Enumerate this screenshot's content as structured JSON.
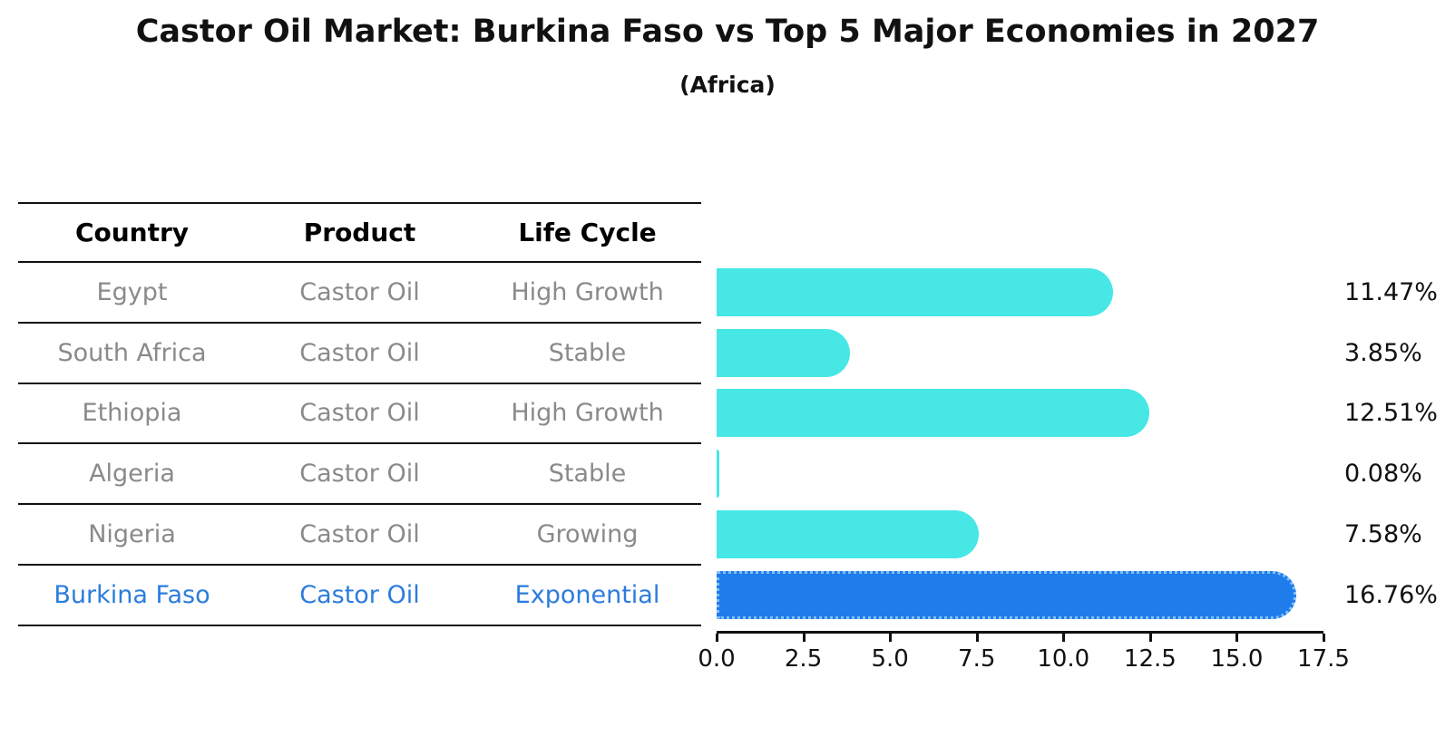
{
  "title": "Castor Oil Market: Burkina Faso vs Top 5 Major Economies in 2027",
  "subtitle": "(Africa)",
  "table": {
    "headers": [
      "Country",
      "Product",
      "Life Cycle"
    ],
    "rows": [
      {
        "country": "Egypt",
        "product": "Castor Oil",
        "life_cycle": "High Growth",
        "highlight": false
      },
      {
        "country": "South Africa",
        "product": "Castor Oil",
        "life_cycle": "Stable",
        "highlight": false
      },
      {
        "country": "Ethiopia",
        "product": "Castor Oil",
        "life_cycle": "High Growth",
        "highlight": false
      },
      {
        "country": "Algeria",
        "product": "Castor Oil",
        "life_cycle": "Stable",
        "highlight": false
      },
      {
        "country": "Nigeria",
        "product": "Castor Oil",
        "life_cycle": "Growing",
        "highlight": false
      },
      {
        "country": "Burkina Faso",
        "product": "Castor Oil",
        "life_cycle": "Exponential",
        "highlight": true
      }
    ]
  },
  "chart_data": {
    "type": "bar",
    "orientation": "horizontal",
    "title": "Castor Oil Market: Burkina Faso vs Top 5 Major Economies in 2027",
    "subtitle": "(Africa)",
    "categories": [
      "Egypt",
      "South Africa",
      "Ethiopia",
      "Algeria",
      "Nigeria",
      "Burkina Faso"
    ],
    "values": [
      11.47,
      3.85,
      12.51,
      0.08,
      7.58,
      16.76
    ],
    "value_labels": [
      "11.47%",
      "3.85%",
      "12.51%",
      "0.08%",
      "7.58%",
      "16.76%"
    ],
    "unit": "%",
    "xlim": [
      0,
      17.5
    ],
    "x_ticks": [
      0,
      2.5,
      5,
      7.5,
      10,
      12.5,
      15,
      17.5
    ],
    "x_tick_labels": [
      "0.0",
      "2.5",
      "5.0",
      "7.5",
      "10.0",
      "12.5",
      "15.0",
      "17.5"
    ],
    "highlight_index": 5,
    "bar_color": "#46E7E5",
    "highlight_color": "#1E7CEB",
    "grid": false,
    "legend": false
  },
  "colors": {
    "bar_color": "#46E7E5",
    "highlight_color": "#1E7CEB",
    "highlight_text": "#2B7CDE",
    "cell_text": "#8A8A8A",
    "line_color": "#111111"
  }
}
